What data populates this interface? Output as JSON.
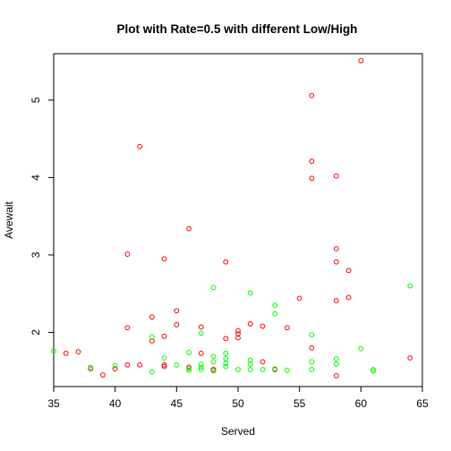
{
  "chart_data": {
    "type": "scatter",
    "title": "Plot with Rate=0.5 with different Low/High",
    "xlabel": "Served",
    "ylabel": "Avewait",
    "xlim": [
      35,
      65
    ],
    "ylim": [
      1.3,
      5.6
    ],
    "xticks": [
      "35",
      "40",
      "45",
      "50",
      "55",
      "60",
      "65"
    ],
    "yticks": [
      "2",
      "3",
      "4",
      "5"
    ],
    "grid": false,
    "legend": "none",
    "marker": "open-circle",
    "series": [
      {
        "color": "#FF0000",
        "points": [
          [
            36,
            1.73
          ],
          [
            37,
            1.75
          ],
          [
            38,
            1.53
          ],
          [
            39,
            1.45
          ],
          [
            40,
            1.53
          ],
          [
            41,
            3.01
          ],
          [
            41,
            2.06
          ],
          [
            41,
            1.58
          ],
          [
            42,
            4.4
          ],
          [
            42,
            1.58
          ],
          [
            43,
            2.2
          ],
          [
            43,
            1.89
          ],
          [
            44,
            2.95
          ],
          [
            44,
            1.95
          ],
          [
            44,
            1.58
          ],
          [
            44,
            1.56
          ],
          [
            45,
            2.28
          ],
          [
            45,
            2.1
          ],
          [
            46,
            3.34
          ],
          [
            46,
            1.55
          ],
          [
            47,
            2.07
          ],
          [
            47,
            1.73
          ],
          [
            48,
            1.52
          ],
          [
            48,
            1.52
          ],
          [
            49,
            2.91
          ],
          [
            49,
            1.92
          ],
          [
            50,
            2.02
          ],
          [
            50,
            1.98
          ],
          [
            50,
            1.93
          ],
          [
            51,
            2.11
          ],
          [
            52,
            2.08
          ],
          [
            52,
            1.62
          ],
          [
            53,
            1.52
          ],
          [
            54,
            2.06
          ],
          [
            55,
            2.44
          ],
          [
            56,
            5.06
          ],
          [
            56,
            4.21
          ],
          [
            56,
            3.99
          ],
          [
            56,
            1.8
          ],
          [
            58,
            4.02
          ],
          [
            58,
            3.08
          ],
          [
            58,
            2.91
          ],
          [
            58,
            2.41
          ],
          [
            58,
            1.44
          ],
          [
            59,
            2.8
          ],
          [
            59,
            2.45
          ],
          [
            60,
            5.51
          ],
          [
            64,
            1.67
          ]
        ]
      },
      {
        "color": "#00FF00",
        "points": [
          [
            35,
            1.76
          ],
          [
            38,
            1.55
          ],
          [
            40,
            1.57
          ],
          [
            43,
            1.94
          ],
          [
            43,
            1.49
          ],
          [
            44,
            1.67
          ],
          [
            45,
            1.58
          ],
          [
            46,
            1.74
          ],
          [
            46,
            1.53
          ],
          [
            46,
            1.51
          ],
          [
            47,
            1.99
          ],
          [
            47,
            1.59
          ],
          [
            47,
            1.55
          ],
          [
            47,
            1.52
          ],
          [
            48,
            2.58
          ],
          [
            48,
            1.69
          ],
          [
            48,
            1.62
          ],
          [
            48,
            1.5
          ],
          [
            49,
            1.73
          ],
          [
            49,
            1.66
          ],
          [
            49,
            1.6
          ],
          [
            49,
            1.56
          ],
          [
            50,
            1.52
          ],
          [
            51,
            2.51
          ],
          [
            51,
            1.64
          ],
          [
            51,
            1.59
          ],
          [
            51,
            1.52
          ],
          [
            52,
            1.52
          ],
          [
            53,
            2.35
          ],
          [
            53,
            2.24
          ],
          [
            53,
            1.53
          ],
          [
            54,
            1.51
          ],
          [
            56,
            1.97
          ],
          [
            56,
            1.62
          ],
          [
            56,
            1.52
          ],
          [
            58,
            1.66
          ],
          [
            58,
            1.59
          ],
          [
            60,
            1.79
          ],
          [
            61,
            1.52
          ],
          [
            61,
            1.5
          ],
          [
            64,
            2.6
          ]
        ]
      }
    ]
  }
}
